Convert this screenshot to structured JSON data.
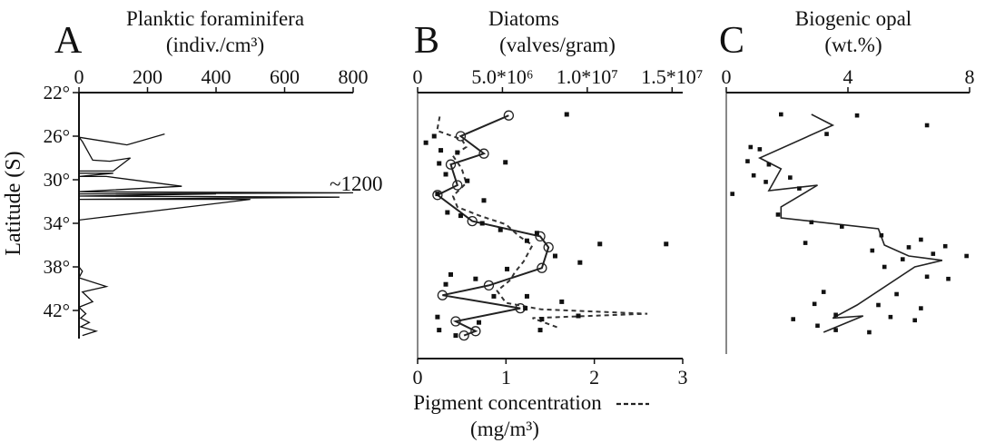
{
  "chart_data": [
    {
      "panel": "A",
      "type": "line",
      "title": "Planktic foraminifera",
      "unit": "(indiv./cm³)",
      "ylabel": "Latitude (S)",
      "xlim": [
        0,
        800
      ],
      "x_ticks": [
        "0",
        "200",
        "400",
        "600",
        "800"
      ],
      "ylim": [
        22,
        44.5
      ],
      "y_ticks": [
        "22°",
        "26°",
        "30°",
        "34°",
        "38°",
        "42°"
      ],
      "annotation": "~1200",
      "series": [
        {
          "points": [
            [
              250,
              25.8
            ],
            [
              140,
              26.8
            ],
            [
              0,
              26.1
            ],
            [
              10,
              26.5
            ],
            [
              40,
              28.2
            ],
            [
              90,
              28.3
            ],
            [
              150,
              28.0
            ],
            [
              100,
              29.2
            ],
            [
              0,
              29.2
            ],
            [
              0,
              29.4
            ],
            [
              100,
              29.4
            ],
            [
              0,
              29.7
            ],
            [
              80,
              29.7
            ],
            [
              300,
              30.6
            ],
            [
              0,
              31.1
            ],
            [
              850,
              31.2
            ],
            [
              0,
              31.3
            ],
            [
              400,
              31.3
            ],
            [
              0,
              31.5
            ],
            [
              760,
              31.6
            ],
            [
              0,
              31.8
            ],
            [
              500,
              31.8
            ],
            [
              0,
              33.7
            ],
            [
              0,
              38.0
            ],
            [
              10,
              38.4
            ],
            [
              0,
              39.0
            ],
            [
              80,
              39.8
            ],
            [
              10,
              40.3
            ],
            [
              40,
              41.2
            ],
            [
              0,
              41.7
            ],
            [
              20,
              42.3
            ],
            [
              5,
              42.7
            ],
            [
              30,
              43.1
            ],
            [
              5,
              43.5
            ],
            [
              50,
              43.9
            ],
            [
              10,
              44.3
            ]
          ]
        }
      ]
    },
    {
      "panel": "B",
      "type": "line",
      "title": "Diatoms",
      "unit": "(valves/gram)",
      "xlim": [
        0,
        16000000
      ],
      "x_ticks": [
        "0",
        "5.0*10⁶",
        "1.0*10⁷",
        "1.5*10⁷"
      ],
      "ylim": [
        22,
        44.5
      ],
      "bottom_axis": {
        "label": "Pigment concentration",
        "unit": "(mg/m³)",
        "xlim": [
          0,
          3
        ],
        "ticks": [
          "0",
          "1",
          "2",
          "3"
        ]
      },
      "series": [
        {
          "style": "solid-circles",
          "points": [
            [
              5500000,
              24.1
            ],
            [
              2600000,
              26.0
            ],
            [
              4000000,
              27.6
            ],
            [
              2000000,
              28.6
            ],
            [
              2400000,
              30.5
            ],
            [
              1200000,
              31.4
            ],
            [
              3300000,
              33.8
            ],
            [
              7400000,
              35.2
            ],
            [
              7900000,
              36.2
            ],
            [
              7500000,
              38.1
            ],
            [
              4300000,
              39.7
            ],
            [
              1500000,
              40.6
            ],
            [
              6200000,
              41.8
            ],
            [
              2300000,
              43.0
            ],
            [
              3500000,
              43.9
            ],
            [
              2800000,
              44.3
            ]
          ]
        },
        {
          "style": "dashed",
          "scale": "pigment",
          "points": [
            [
              0.25,
              24.2
            ],
            [
              0.22,
              25.5
            ],
            [
              0.5,
              26.3
            ],
            [
              0.55,
              27.0
            ],
            [
              0.4,
              27.8
            ],
            [
              0.5,
              29.0
            ],
            [
              0.55,
              30.3
            ],
            [
              0.4,
              31.5
            ],
            [
              0.45,
              32.5
            ],
            [
              0.7,
              33.3
            ],
            [
              1.0,
              34.1
            ],
            [
              1.15,
              35.2
            ],
            [
              1.3,
              36.0
            ],
            [
              1.2,
              37.5
            ],
            [
              1.1,
              38.5
            ],
            [
              1.05,
              39.2
            ],
            [
              0.9,
              40.2
            ],
            [
              1.0,
              41.3
            ],
            [
              1.4,
              41.9
            ],
            [
              2.6,
              42.3
            ],
            [
              1.3,
              42.7
            ],
            [
              1.6,
              43.6
            ]
          ]
        },
        {
          "style": "scatter",
          "points": [
            [
              9000000,
              24.0
            ],
            [
              1000000,
              26.0
            ],
            [
              500000,
              26.6
            ],
            [
              1400000,
              27.3
            ],
            [
              2400000,
              27.5
            ],
            [
              5300000,
              28.4
            ],
            [
              1300000,
              28.5
            ],
            [
              1700000,
              29.5
            ],
            [
              3000000,
              30.1
            ],
            [
              1200000,
              31.3
            ],
            [
              4000000,
              31.9
            ],
            [
              1800000,
              33.0
            ],
            [
              2600000,
              33.3
            ],
            [
              3900000,
              34.0
            ],
            [
              5000000,
              34.6
            ],
            [
              7200000,
              34.9
            ],
            [
              6600000,
              35.6
            ],
            [
              11000000,
              35.9
            ],
            [
              15000000,
              35.9
            ],
            [
              8300000,
              37.0
            ],
            [
              9800000,
              37.6
            ],
            [
              5400000,
              38.2
            ],
            [
              2000000,
              38.7
            ],
            [
              3500000,
              39.1
            ],
            [
              1700000,
              39.6
            ],
            [
              4600000,
              40.7
            ],
            [
              6600000,
              40.7
            ],
            [
              8700000,
              41.2
            ],
            [
              6500000,
              41.8
            ],
            [
              9700000,
              42.5
            ],
            [
              1200000,
              42.6
            ],
            [
              7500000,
              42.8
            ],
            [
              3700000,
              43.1
            ],
            [
              1300000,
              43.8
            ],
            [
              7400000,
              43.8
            ],
            [
              2300000,
              44.3
            ]
          ]
        }
      ]
    },
    {
      "panel": "C",
      "type": "line",
      "title": "Biogenic opal",
      "unit": "(wt.%)",
      "xlim": [
        0,
        8
      ],
      "x_ticks": [
        "0",
        "4",
        "8"
      ],
      "ylim": [
        22,
        44.5
      ],
      "series": [
        {
          "style": "solid",
          "points": [
            [
              2.8,
              24.0
            ],
            [
              3.5,
              25.0
            ],
            [
              1.1,
              28.0
            ],
            [
              1.8,
              29.0
            ],
            [
              1.4,
              31.0
            ],
            [
              3.0,
              30.5
            ],
            [
              1.8,
              32.5
            ],
            [
              1.8,
              33.5
            ],
            [
              5.0,
              34.5
            ],
            [
              5.2,
              36.0
            ],
            [
              6.0,
              37.0
            ],
            [
              7.1,
              37.4
            ],
            [
              6.2,
              38.0
            ],
            [
              4.3,
              41.5
            ],
            [
              3.5,
              42.7
            ],
            [
              4.5,
              42.5
            ],
            [
              3.2,
              44.0
            ]
          ]
        },
        {
          "style": "scatter",
          "points": [
            [
              1.8,
              24.0
            ],
            [
              4.3,
              24.1
            ],
            [
              6.6,
              25.0
            ],
            [
              3.3,
              25.8
            ],
            [
              0.8,
              27.0
            ],
            [
              1.1,
              27.2
            ],
            [
              0.7,
              28.3
            ],
            [
              1.4,
              28.6
            ],
            [
              0.9,
              29.6
            ],
            [
              2.1,
              29.8
            ],
            [
              1.3,
              30.2
            ],
            [
              2.4,
              30.8
            ],
            [
              0.2,
              31.3
            ],
            [
              1.7,
              33.2
            ],
            [
              2.8,
              33.9
            ],
            [
              3.8,
              34.3
            ],
            [
              5.1,
              35.1
            ],
            [
              6.4,
              35.5
            ],
            [
              2.6,
              35.8
            ],
            [
              7.2,
              36.1
            ],
            [
              4.8,
              36.5
            ],
            [
              6.0,
              36.2
            ],
            [
              6.8,
              36.8
            ],
            [
              5.8,
              37.3
            ],
            [
              7.9,
              37.0
            ],
            [
              5.2,
              38.0
            ],
            [
              6.6,
              38.9
            ],
            [
              7.3,
              39.1
            ],
            [
              3.2,
              40.3
            ],
            [
              5.6,
              40.5
            ],
            [
              2.9,
              41.4
            ],
            [
              5.0,
              41.5
            ],
            [
              6.4,
              41.8
            ],
            [
              3.6,
              42.4
            ],
            [
              2.2,
              42.8
            ],
            [
              5.4,
              42.6
            ],
            [
              6.2,
              42.9
            ],
            [
              3.0,
              43.4
            ],
            [
              3.6,
              43.8
            ],
            [
              4.7,
              44.0
            ]
          ]
        }
      ]
    }
  ]
}
